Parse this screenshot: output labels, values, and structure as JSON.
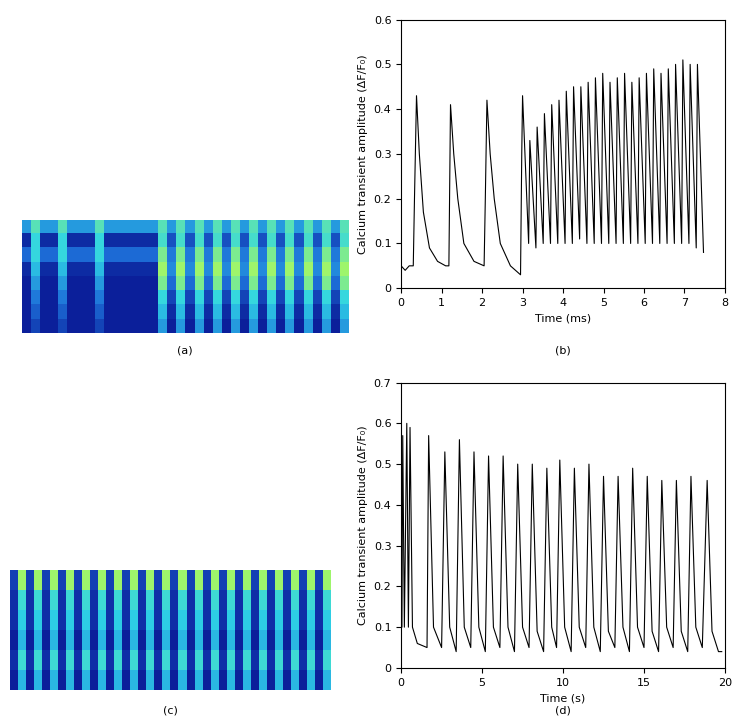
{
  "chart_data": [
    {
      "type": "heatmap",
      "caption": "(a)",
      "tick_labels": false,
      "cells": [
        [
          0.5,
          0.8,
          0.5,
          0.5,
          0.8,
          0.5,
          0.5,
          0.5,
          0.8,
          0.5,
          0.5,
          0.5,
          0.5,
          0.5,
          0.5,
          0.8,
          0.5,
          0.8,
          0.5,
          0.8,
          0.5,
          0.8,
          0.5,
          0.8,
          0.5,
          0.8,
          0.5,
          0.8,
          0.5,
          0.8,
          0.5,
          0.8,
          0.5,
          0.8,
          0.5,
          0.8
        ],
        [
          0.1,
          0.7,
          0.1,
          0.1,
          0.7,
          0.1,
          0.1,
          0.1,
          0.7,
          0.1,
          0.1,
          0.1,
          0.1,
          0.1,
          0.1,
          0.75,
          0.25,
          0.75,
          0.25,
          0.75,
          0.25,
          0.75,
          0.25,
          0.75,
          0.25,
          0.75,
          0.25,
          0.75,
          0.25,
          0.75,
          0.25,
          0.75,
          0.25,
          0.75,
          0.25,
          0.75
        ],
        [
          0.35,
          0.7,
          0.35,
          0.35,
          0.7,
          0.35,
          0.35,
          0.35,
          0.7,
          0.35,
          0.35,
          0.35,
          0.35,
          0.35,
          0.35,
          0.9,
          0.4,
          0.9,
          0.4,
          0.9,
          0.4,
          0.9,
          0.4,
          0.9,
          0.4,
          0.9,
          0.4,
          0.9,
          0.4,
          0.9,
          0.4,
          0.9,
          0.4,
          0.9,
          0.4,
          0.9
        ],
        [
          0.1,
          0.6,
          0.1,
          0.1,
          0.6,
          0.1,
          0.1,
          0.1,
          0.6,
          0.1,
          0.1,
          0.1,
          0.1,
          0.1,
          0.1,
          1.0,
          0.45,
          1.0,
          0.45,
          1.0,
          0.45,
          1.0,
          0.45,
          1.0,
          0.45,
          1.0,
          0.45,
          1.0,
          0.45,
          1.0,
          0.45,
          1.0,
          0.45,
          1.0,
          0.45,
          1.0
        ],
        [
          0.05,
          0.5,
          0.05,
          0.05,
          0.5,
          0.05,
          0.05,
          0.05,
          0.5,
          0.05,
          0.05,
          0.05,
          0.05,
          0.05,
          0.05,
          0.9,
          0.35,
          0.9,
          0.35,
          0.9,
          0.35,
          0.9,
          0.35,
          0.9,
          0.35,
          0.9,
          0.35,
          0.9,
          0.35,
          0.9,
          0.35,
          0.9,
          0.35,
          0.9,
          0.35,
          0.9
        ],
        [
          0.05,
          0.4,
          0.05,
          0.05,
          0.4,
          0.05,
          0.05,
          0.05,
          0.4,
          0.05,
          0.05,
          0.05,
          0.05,
          0.05,
          0.05,
          0.7,
          0.2,
          0.7,
          0.2,
          0.7,
          0.2,
          0.7,
          0.2,
          0.7,
          0.2,
          0.7,
          0.2,
          0.7,
          0.2,
          0.7,
          0.2,
          0.7,
          0.2,
          0.7,
          0.2,
          0.7
        ],
        [
          0.05,
          0.3,
          0.05,
          0.05,
          0.3,
          0.05,
          0.05,
          0.05,
          0.3,
          0.05,
          0.05,
          0.05,
          0.05,
          0.05,
          0.05,
          0.6,
          0.1,
          0.6,
          0.1,
          0.6,
          0.1,
          0.6,
          0.1,
          0.6,
          0.1,
          0.6,
          0.1,
          0.6,
          0.1,
          0.6,
          0.1,
          0.6,
          0.1,
          0.6,
          0.1,
          0.6
        ],
        [
          0.05,
          0.2,
          0.05,
          0.05,
          0.2,
          0.05,
          0.05,
          0.05,
          0.2,
          0.05,
          0.05,
          0.05,
          0.05,
          0.05,
          0.05,
          0.5,
          0.05,
          0.5,
          0.05,
          0.5,
          0.05,
          0.5,
          0.05,
          0.5,
          0.05,
          0.5,
          0.05,
          0.5,
          0.05,
          0.5,
          0.05,
          0.5,
          0.05,
          0.5,
          0.05,
          0.5
        ]
      ]
    },
    {
      "type": "line",
      "caption": "(b)",
      "x_label": "Time (ms)",
      "y_label": "Calcium transient amplitude (ΔF/F₀)",
      "xlim": [
        0,
        8
      ],
      "xticks": [
        0,
        1,
        2,
        3,
        4,
        5,
        6,
        7,
        8
      ],
      "ylim": [
        0,
        0.6
      ],
      "yticks": [
        0,
        0.1,
        0.2,
        0.3,
        0.4,
        0.5,
        0.6
      ],
      "color": "#000000",
      "x": [
        0,
        0.1,
        0.2,
        0.3,
        0.33,
        0.38,
        0.45,
        0.55,
        0.7,
        0.9,
        1.1,
        1.18,
        1.22,
        1.3,
        1.4,
        1.55,
        1.8,
        2.05,
        2.08,
        2.12,
        2.2,
        2.3,
        2.45,
        2.7,
        2.95,
        2.98,
        3.0,
        3.15,
        3.18,
        3.33,
        3.36,
        3.51,
        3.54,
        3.69,
        3.72,
        3.87,
        3.9,
        4.05,
        4.08,
        4.23,
        4.26,
        4.41,
        4.44,
        4.59,
        4.62,
        4.77,
        4.8,
        4.95,
        4.98,
        5.13,
        5.16,
        5.31,
        5.34,
        5.49,
        5.52,
        5.67,
        5.7,
        5.85,
        5.88,
        6.03,
        6.06,
        6.21,
        6.24,
        6.39,
        6.42,
        6.57,
        6.6,
        6.75,
        6.78,
        6.93,
        6.96,
        7.11,
        7.14,
        7.29,
        7.32,
        7.47
      ],
      "values": [
        0.05,
        0.04,
        0.05,
        0.05,
        0.2,
        0.43,
        0.3,
        0.17,
        0.09,
        0.06,
        0.05,
        0.05,
        0.41,
        0.3,
        0.2,
        0.1,
        0.06,
        0.05,
        0.2,
        0.42,
        0.3,
        0.2,
        0.1,
        0.05,
        0.03,
        0.3,
        0.43,
        0.1,
        0.33,
        0.09,
        0.36,
        0.1,
        0.39,
        0.1,
        0.41,
        0.1,
        0.42,
        0.1,
        0.44,
        0.1,
        0.45,
        0.11,
        0.45,
        0.1,
        0.46,
        0.1,
        0.47,
        0.1,
        0.48,
        0.1,
        0.46,
        0.1,
        0.47,
        0.1,
        0.48,
        0.1,
        0.46,
        0.1,
        0.47,
        0.1,
        0.48,
        0.1,
        0.49,
        0.1,
        0.48,
        0.1,
        0.49,
        0.1,
        0.5,
        0.1,
        0.51,
        0.1,
        0.5,
        0.09,
        0.5,
        0.08
      ]
    },
    {
      "type": "heatmap",
      "caption": "(c)",
      "tick_labels": false,
      "cells": [
        [
          0.2,
          0.8,
          0.2,
          0.8,
          0.2,
          0.8,
          0.2,
          0.8,
          0.2,
          0.8,
          0.2,
          0.8,
          0.2,
          0.8,
          0.2,
          0.8,
          0.2,
          0.8,
          0.2,
          0.8,
          0.2,
          0.8,
          0.2,
          0.8,
          0.2,
          0.8,
          0.2,
          0.8,
          0.2,
          0.8,
          0.2,
          0.8,
          0.2,
          0.8,
          0.2,
          0.8,
          0.2,
          0.8,
          0.2,
          0.8
        ],
        [
          0.15,
          0.6,
          0.15,
          0.6,
          0.15,
          0.6,
          0.15,
          0.6,
          0.15,
          0.6,
          0.15,
          0.6,
          0.15,
          0.6,
          0.15,
          0.6,
          0.15,
          0.6,
          0.15,
          0.6,
          0.15,
          0.6,
          0.15,
          0.6,
          0.15,
          0.6,
          0.15,
          0.6,
          0.15,
          0.6,
          0.15,
          0.6,
          0.15,
          0.6,
          0.15,
          0.6,
          0.15,
          0.6,
          0.15,
          0.6
        ],
        [
          0.15,
          0.55,
          0.15,
          0.55,
          0.15,
          0.55,
          0.15,
          0.55,
          0.15,
          0.55,
          0.15,
          0.55,
          0.15,
          0.55,
          0.15,
          0.55,
          0.15,
          0.55,
          0.15,
          0.55,
          0.15,
          0.55,
          0.15,
          0.55,
          0.15,
          0.55,
          0.15,
          0.55,
          0.15,
          0.55,
          0.15,
          0.55,
          0.15,
          0.55,
          0.15,
          0.55,
          0.15,
          0.55,
          0.15,
          0.55
        ],
        [
          0.1,
          0.5,
          0.1,
          0.5,
          0.1,
          0.5,
          0.1,
          0.5,
          0.1,
          0.5,
          0.1,
          0.5,
          0.1,
          0.5,
          0.1,
          0.5,
          0.1,
          0.5,
          0.1,
          0.5,
          0.1,
          0.5,
          0.1,
          0.5,
          0.1,
          0.5,
          0.1,
          0.5,
          0.1,
          0.5,
          0.1,
          0.5,
          0.1,
          0.5,
          0.1,
          0.5,
          0.1,
          0.5,
          0.1,
          0.5
        ],
        [
          0.15,
          0.6,
          0.15,
          0.6,
          0.15,
          0.6,
          0.15,
          0.6,
          0.15,
          0.6,
          0.15,
          0.6,
          0.15,
          0.6,
          0.15,
          0.6,
          0.15,
          0.6,
          0.15,
          0.6,
          0.15,
          0.6,
          0.15,
          0.6,
          0.15,
          0.6,
          0.15,
          0.6,
          0.15,
          0.6,
          0.15,
          0.6,
          0.15,
          0.6,
          0.15,
          0.6,
          0.15,
          0.6,
          0.15,
          0.6
        ],
        [
          0.1,
          0.5,
          0.1,
          0.5,
          0.1,
          0.5,
          0.1,
          0.5,
          0.1,
          0.5,
          0.1,
          0.5,
          0.1,
          0.5,
          0.1,
          0.5,
          0.1,
          0.5,
          0.1,
          0.5,
          0.1,
          0.5,
          0.1,
          0.5,
          0.1,
          0.5,
          0.1,
          0.5,
          0.1,
          0.5,
          0.1,
          0.5,
          0.1,
          0.5,
          0.1,
          0.5,
          0.1,
          0.5,
          0.1,
          0.5
        ]
      ]
    },
    {
      "type": "line",
      "caption": "(d)",
      "x_label": "Time (s)",
      "y_label": "Calcium transient amplitude (ΔF/F₀)",
      "xlim": [
        0,
        20
      ],
      "xticks": [
        0,
        5,
        10,
        15,
        20
      ],
      "ylim": [
        0,
        0.7
      ],
      "yticks": [
        0,
        0.1,
        0.2,
        0.3,
        0.4,
        0.5,
        0.6,
        0.7
      ],
      "color": "#000000",
      "x": [
        0,
        0.05,
        0.1,
        0.2,
        0.35,
        0.45,
        0.55,
        0.7,
        1.0,
        1.6,
        1.7,
        2.0,
        2.5,
        2.7,
        3.0,
        3.4,
        3.6,
        3.9,
        4.3,
        4.5,
        4.8,
        5.2,
        5.4,
        5.7,
        6.1,
        6.3,
        6.6,
        7.0,
        7.2,
        7.5,
        7.9,
        8.1,
        8.4,
        8.8,
        9.0,
        9.3,
        9.6,
        9.8,
        10.1,
        10.5,
        10.7,
        11.0,
        11.4,
        11.6,
        11.9,
        12.3,
        12.5,
        12.8,
        13.2,
        13.4,
        13.7,
        14.1,
        14.3,
        14.6,
        15.0,
        15.2,
        15.5,
        15.9,
        16.1,
        16.4,
        16.8,
        17.0,
        17.3,
        17.7,
        17.9,
        18.2,
        18.6,
        18.9,
        19.2,
        19.6,
        19.8
      ],
      "values": [
        0.1,
        0.1,
        0.57,
        0.1,
        0.6,
        0.1,
        0.59,
        0.1,
        0.06,
        0.05,
        0.57,
        0.1,
        0.05,
        0.53,
        0.1,
        0.04,
        0.56,
        0.1,
        0.05,
        0.53,
        0.1,
        0.04,
        0.52,
        0.1,
        0.05,
        0.52,
        0.1,
        0.04,
        0.5,
        0.1,
        0.05,
        0.5,
        0.09,
        0.04,
        0.49,
        0.1,
        0.05,
        0.51,
        0.1,
        0.04,
        0.49,
        0.1,
        0.05,
        0.5,
        0.1,
        0.04,
        0.47,
        0.09,
        0.05,
        0.47,
        0.1,
        0.04,
        0.49,
        0.1,
        0.05,
        0.47,
        0.09,
        0.04,
        0.46,
        0.1,
        0.05,
        0.46,
        0.09,
        0.04,
        0.47,
        0.1,
        0.05,
        0.46,
        0.09,
        0.04,
        0.04
      ]
    }
  ]
}
